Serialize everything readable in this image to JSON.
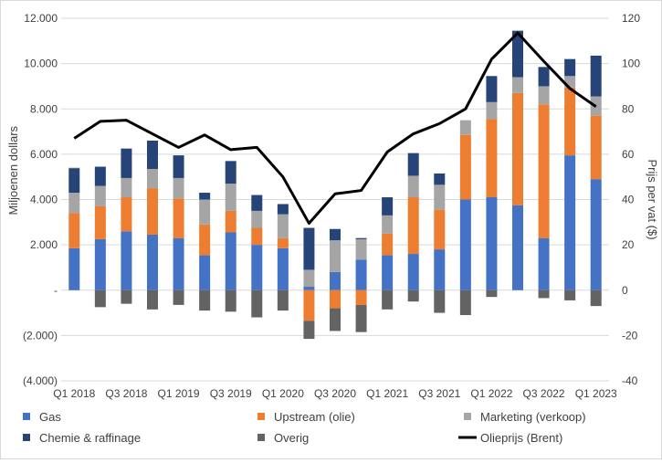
{
  "chart_data": {
    "type": "bar",
    "stacked": true,
    "categories": [
      "Q1 2018",
      "Q2 2018",
      "Q3 2018",
      "Q4 2018",
      "Q1 2019",
      "Q2 2019",
      "Q3 2019",
      "Q4 2019",
      "Q1 2020",
      "Q2 2020",
      "Q3 2020",
      "Q4 2020",
      "Q1 2021",
      "Q2 2021",
      "Q3 2021",
      "Q4 2021",
      "Q1 2022",
      "Q2 2022",
      "Q3 2022",
      "Q4 2022",
      "Q1 2023"
    ],
    "x_tick_labels": [
      "Q1 2018",
      "Q3 2018",
      "Q1 2019",
      "Q3 2019",
      "Q1 2020",
      "Q3 2020",
      "Q1 2021",
      "Q3 2021",
      "Q1 2022",
      "Q3 2022",
      "Q1 2023"
    ],
    "ylabel": "Miljoenen dollars",
    "y2label": "Prijs per vat ($)",
    "ylim": [
      -4000,
      12000
    ],
    "y2lim": [
      -40,
      120
    ],
    "y_tick_values": [
      -4000,
      -2000,
      0,
      2000,
      4000,
      6000,
      8000,
      10000,
      12000
    ],
    "y_tick_labels": [
      "(4.000)",
      "(2.000)",
      "-",
      "2.000",
      "4.000",
      "6.000",
      "8.000",
      "10.000",
      "12.000"
    ],
    "y2_tick_values": [
      -40,
      -20,
      0,
      20,
      40,
      60,
      80,
      100,
      120
    ],
    "y2_tick_labels": [
      "-40",
      "-20",
      "0",
      "20",
      "40",
      "60",
      "80",
      "100",
      "120"
    ],
    "grid": true,
    "legend_position": "bottom",
    "series": [
      {
        "name": "Gas",
        "color": "#4472C4",
        "axis": "left",
        "kind": "bar",
        "values": [
          1850,
          2250,
          2600,
          2450,
          2300,
          1550,
          2550,
          2000,
          1850,
          150,
          800,
          1350,
          1550,
          1600,
          1800,
          4000,
          4100,
          3750,
          2300,
          5950,
          4900
        ]
      },
      {
        "name": "Upstream (olie)",
        "color": "#ED7D31",
        "axis": "left",
        "kind": "bar",
        "values": [
          1550,
          1450,
          1500,
          2050,
          1750,
          1350,
          950,
          750,
          450,
          -1350,
          -800,
          -650,
          950,
          2500,
          1750,
          2850,
          3450,
          4950,
          5900,
          3000,
          2800
        ]
      },
      {
        "name": "Marketing (verkoop)",
        "color": "#A5A5A5",
        "axis": "left",
        "kind": "bar",
        "values": [
          900,
          900,
          850,
          850,
          900,
          1100,
          1200,
          750,
          1050,
          750,
          1400,
          900,
          800,
          950,
          1100,
          650,
          750,
          700,
          800,
          500,
          850
        ]
      },
      {
        "name": "Chemie & raffinage",
        "color": "#264478",
        "axis": "left",
        "kind": "bar",
        "values": [
          1050,
          850,
          1300,
          1250,
          1000,
          300,
          1000,
          700,
          450,
          1850,
          500,
          50,
          800,
          1000,
          500,
          0,
          1150,
          2050,
          850,
          750,
          1800
        ]
      },
      {
        "name": "Overig",
        "color": "#636363",
        "axis": "left",
        "kind": "bar",
        "values": [
          50,
          -750,
          -600,
          -850,
          -650,
          -900,
          -950,
          -1200,
          -900,
          -800,
          -1000,
          -1200,
          -850,
          -500,
          -1000,
          -1100,
          -300,
          0,
          -350,
          -450,
          -700
        ]
      },
      {
        "name": "Olieprijs (Brent)",
        "color": "#000000",
        "axis": "right",
        "kind": "line",
        "values": [
          67,
          74.5,
          75,
          69,
          63,
          68.5,
          62,
          63,
          50,
          29.5,
          42.5,
          44,
          61,
          69,
          73.5,
          80,
          102,
          113.5,
          101,
          89,
          81
        ]
      }
    ]
  }
}
